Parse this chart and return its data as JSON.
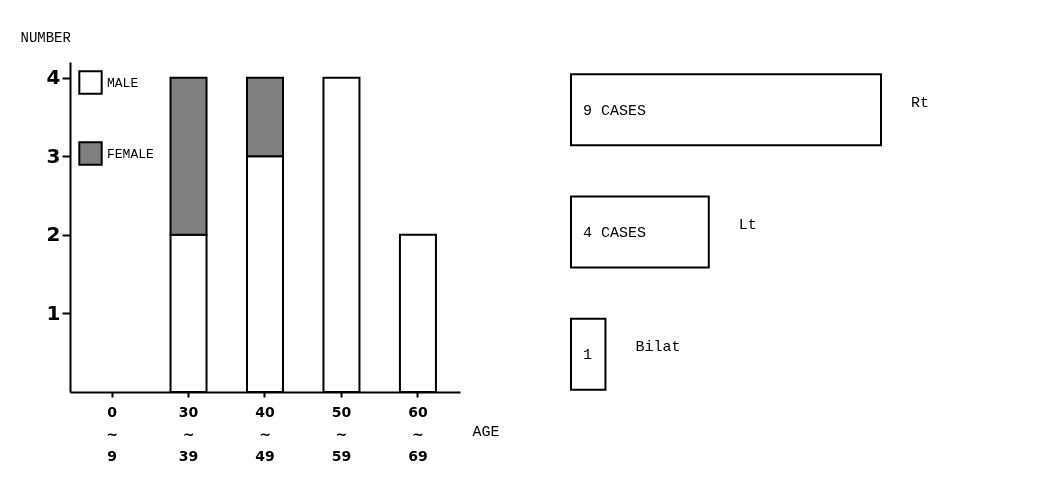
{
  "chart_data": [
    {
      "type": "bar",
      "stacked": true,
      "ylabel": "NUMBER",
      "xlabel": "AGE",
      "categories": [
        "0\n~\n9",
        "30\n~\n39",
        "40\n~\n49",
        "50\n~\n59",
        "60\n~\n69"
      ],
      "ylim": [
        0,
        4.2
      ],
      "yticks": [
        1,
        2,
        3,
        4
      ],
      "grid": false,
      "legend": "top left",
      "series": [
        {
          "name": "MALE",
          "color": "#ffffff",
          "values": [
            0,
            2,
            3,
            4,
            2
          ]
        },
        {
          "name": "FEMALE",
          "color": "#808080",
          "values": [
            0,
            2,
            1,
            0,
            0
          ]
        }
      ]
    },
    {
      "type": "bar",
      "orientation": "horizontal",
      "categories": [
        "Rt",
        "Lt",
        "Bilat"
      ],
      "values": [
        9,
        4,
        1
      ],
      "value_labels": [
        "9 CASES",
        "4 CASES",
        "1"
      ],
      "color": "#ffffff"
    }
  ]
}
